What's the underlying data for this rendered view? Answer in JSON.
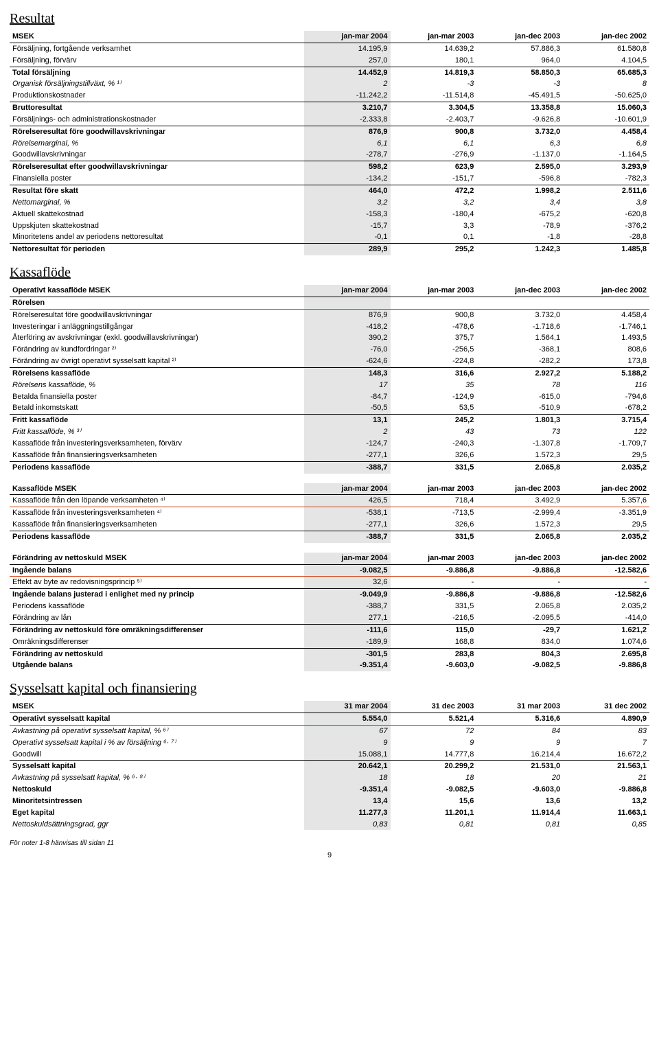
{
  "sections": {
    "resultat": "Resultat",
    "kassa": "Kassaflöde",
    "syss": "Sysselsatt kapital och finansiering"
  },
  "footer": "För noter 1-8 hänvisas till sidan 11",
  "page_number": "9",
  "colors": {
    "shaded_bg": "#e5e5e5",
    "redline": "#cc3300",
    "text": "#000000",
    "background": "#ffffff"
  },
  "tables": {
    "resultat": {
      "headers": [
        "MSEK",
        "jan-mar 2004",
        "jan-mar 2003",
        "jan-dec 2003",
        "jan-dec 2002"
      ],
      "shaded_col": 1,
      "rows": [
        {
          "l": "Försäljning, fortgående verksamhet",
          "v": [
            "14.195,9",
            "14.639,2",
            "57.886,3",
            "61.580,8"
          ]
        },
        {
          "l": "Försäljning, förvärv",
          "v": [
            "257,0",
            "180,1",
            "964,0",
            "4.104,5"
          ],
          "uline": true
        },
        {
          "l": "Total försäljning",
          "v": [
            "14.452,9",
            "14.819,3",
            "58.850,3",
            "65.685,3"
          ],
          "bold": true
        },
        {
          "l": "Organisk försäljningstillväxt, % ¹⁾",
          "v": [
            "2",
            "-3",
            "-3",
            "8"
          ],
          "italic": true
        },
        {
          "l": "Produktionskostnader",
          "v": [
            "-11.242,2",
            "-11.514,8",
            "-45.491,5",
            "-50.625,0"
          ],
          "uline": true
        },
        {
          "l": "Bruttoresultat",
          "v": [
            "3.210,7",
            "3.304,5",
            "13.358,8",
            "15.060,3"
          ],
          "bold": true
        },
        {
          "l": "Försäljnings- och administrationskostnader",
          "v": [
            "-2.333,8",
            "-2.403,7",
            "-9.626,8",
            "-10.601,9"
          ],
          "uline": true
        },
        {
          "l": "Rörelseresultat före goodwillavskrivningar",
          "v": [
            "876,9",
            "900,8",
            "3.732,0",
            "4.458,4"
          ],
          "bold": true
        },
        {
          "l": "Rörelsemarginal, %",
          "v": [
            "6,1",
            "6,1",
            "6,3",
            "6,8"
          ],
          "italic": true
        },
        {
          "l": "Goodwillavskrivningar",
          "v": [
            "-278,7",
            "-276,9",
            "-1.137,0",
            "-1.164,5"
          ],
          "uline": true
        },
        {
          "l": "Rörelseresultat efter goodwillavskrivningar",
          "v": [
            "598,2",
            "623,9",
            "2.595,0",
            "3.293,9"
          ],
          "bold": true
        },
        {
          "l": "Finansiella poster",
          "v": [
            "-134,2",
            "-151,7",
            "-596,8",
            "-782,3"
          ],
          "uline": true
        },
        {
          "l": "Resultat före skatt",
          "v": [
            "464,0",
            "472,2",
            "1.998,2",
            "2.511,6"
          ],
          "bold": true
        },
        {
          "l": "Nettomarginal, %",
          "v": [
            "3,2",
            "3,2",
            "3,4",
            "3,8"
          ],
          "italic": true
        },
        {
          "l": "Aktuell skattekostnad",
          "v": [
            "-158,3",
            "-180,4",
            "-675,2",
            "-620,8"
          ]
        },
        {
          "l": "Uppskjuten skattekostnad",
          "v": [
            "-15,7",
            "3,3",
            "-78,9",
            "-376,2"
          ]
        },
        {
          "l": "Minoritetens andel av periodens nettoresultat",
          "v": [
            "-0,1",
            "0,1",
            "-1,8",
            "-28,8"
          ],
          "uline": true
        },
        {
          "l": "Nettoresultat för perioden",
          "v": [
            "289,9",
            "295,2",
            "1.242,3",
            "1.485,8"
          ],
          "bold": true
        }
      ]
    },
    "kassa_op": {
      "headers": [
        "Operativt kassaflöde MSEK",
        "jan-mar 2004",
        "jan-mar 2003",
        "jan-dec 2003",
        "jan-dec 2002"
      ],
      "shaded_col": 1,
      "rows": [
        {
          "l": "Rörelsen",
          "v": [
            "",
            "",
            "",
            ""
          ],
          "redline": true,
          "bold": true
        },
        {
          "l": "Rörelseresultat före goodwillavskrivningar",
          "v": [
            "876,9",
            "900,8",
            "3.732,0",
            "4.458,4"
          ]
        },
        {
          "l": "Investeringar i anläggningstillgångar",
          "v": [
            "-418,2",
            "-478,6",
            "-1.718,6",
            "-1.746,1"
          ]
        },
        {
          "l": "Återföring av avskrivningar (exkl. goodwillavskrivningar)",
          "v": [
            "390,2",
            "375,7",
            "1.564,1",
            "1.493,5"
          ]
        },
        {
          "l": "Förändring av kundfordringar ²⁾",
          "v": [
            "-76,0",
            "-256,5",
            "-368,1",
            "808,6"
          ]
        },
        {
          "l": "Förändring av övrigt operativt sysselsatt kapital ²⁾",
          "v": [
            "-624,6",
            "-224,8",
            "-282,2",
            "173,8"
          ],
          "uline": true
        },
        {
          "l": "Rörelsens kassaflöde",
          "v": [
            "148,3",
            "316,6",
            "2.927,2",
            "5.188,2"
          ],
          "bold": true
        },
        {
          "l": "Rörelsens kassaflöde, %",
          "v": [
            "17",
            "35",
            "78",
            "116"
          ],
          "italic": true
        },
        {
          "l": "Betalda finansiella poster",
          "v": [
            "-84,7",
            "-124,9",
            "-615,0",
            "-794,6"
          ]
        },
        {
          "l": "Betald inkomstskatt",
          "v": [
            "-50,5",
            "53,5",
            "-510,9",
            "-678,2"
          ],
          "uline": true
        },
        {
          "l": "Fritt kassaflöde",
          "v": [
            "13,1",
            "245,2",
            "1.801,3",
            "3.715,4"
          ],
          "bold": true
        },
        {
          "l": "Fritt kassaflöde, % ³⁾",
          "v": [
            "2",
            "43",
            "73",
            "122"
          ],
          "italic": true
        },
        {
          "l": "Kassaflöde från investeringsverksamheten, förvärv",
          "v": [
            "-124,7",
            "-240,3",
            "-1.307,8",
            "-1.709,7"
          ]
        },
        {
          "l": "Kassaflöde från finansieringsverksamheten",
          "v": [
            "-277,1",
            "326,6",
            "1.572,3",
            "29,5"
          ],
          "uline": true
        },
        {
          "l": "Periodens kassaflöde",
          "v": [
            "-388,7",
            "331,5",
            "2.065,8",
            "2.035,2"
          ],
          "bold": true
        }
      ]
    },
    "kassa_msek": {
      "headers": [
        "Kassaflöde MSEK",
        "jan-mar 2004",
        "jan-mar 2003",
        "jan-dec 2003",
        "jan-dec 2002"
      ],
      "shaded_col": 1,
      "rows": [
        {
          "l": "Kassaflöde från den löpande verksamheten ⁴⁾",
          "v": [
            "426,5",
            "718,4",
            "3.492,9",
            "5.357,6"
          ],
          "redline": true
        },
        {
          "l": "Kassaflöde från investeringsverksamheten ⁴⁾",
          "v": [
            "-538,1",
            "-713,5",
            "-2.999,4",
            "-3.351,9"
          ]
        },
        {
          "l": "Kassaflöde från finansieringsverksamheten",
          "v": [
            "-277,1",
            "326,6",
            "1.572,3",
            "29,5"
          ],
          "uline": true
        },
        {
          "l": "Periodens kassaflöde",
          "v": [
            "-388,7",
            "331,5",
            "2.065,8",
            "2.035,2"
          ],
          "bold": true
        }
      ]
    },
    "netto": {
      "headers": [
        "Förändring av nettoskuld MSEK",
        "jan-mar 2004",
        "jan-mar 2003",
        "jan-dec 2003",
        "jan-dec 2002"
      ],
      "shaded_col": 1,
      "rows": [
        {
          "l": "Ingående balans",
          "v": [
            "-9.082,5",
            "-9.886,8",
            "-9.886,8",
            "-12.582,6"
          ],
          "bold": true,
          "redline": true
        },
        {
          "l": "Effekt av byte av redovisningsprincip ⁵⁾",
          "v": [
            "32,6",
            "-",
            "-",
            "-"
          ],
          "uline": true
        },
        {
          "l": "Ingående balans justerad i enlighet med ny princip",
          "v": [
            "-9.049,9",
            "-9.886,8",
            "-9.886,8",
            "-12.582,6"
          ],
          "bold": true
        },
        {
          "l": "Periodens kassaflöde",
          "v": [
            "-388,7",
            "331,5",
            "2.065,8",
            "2.035,2"
          ]
        },
        {
          "l": "Förändring av lån",
          "v": [
            "277,1",
            "-216,5",
            "-2.095,5",
            "-414,0"
          ],
          "uline": true
        },
        {
          "l": "Förändring av nettoskuld före omräkningsdifferenser",
          "v": [
            "-111,6",
            "115,0",
            "-29,7",
            "1.621,2"
          ],
          "bold": true
        },
        {
          "l": "Omräkningsdifferenser",
          "v": [
            "-189,9",
            "168,8",
            "834,0",
            "1.074,6"
          ],
          "uline": true
        },
        {
          "l": "Förändring av nettoskuld",
          "v": [
            "-301,5",
            "283,8",
            "804,3",
            "2.695,8"
          ],
          "bold": true
        },
        {
          "l": "Utgående balans",
          "v": [
            "-9.351,4",
            "-9.603,0",
            "-9.082,5",
            "-9.886,8"
          ],
          "bold": true
        }
      ]
    },
    "syss": {
      "headers": [
        "MSEK",
        "31 mar 2004",
        "31 dec 2003",
        "31 mar 2003",
        "31 dec 2002"
      ],
      "shaded_col": 1,
      "rows": [
        {
          "l": "Operativt sysselsatt kapital",
          "v": [
            "5.554,0",
            "5.521,4",
            "5.316,6",
            "4.890,9"
          ],
          "bold": true,
          "redline": true
        },
        {
          "l": "Avkastning på operativt sysselsatt kapital, % ⁶⁾",
          "v": [
            "67",
            "72",
            "84",
            "83"
          ],
          "italic": true
        },
        {
          "l": "Operativt sysselsatt kapital i % av försäljning ⁶· ⁷⁾",
          "v": [
            "9",
            "9",
            "9",
            "7"
          ],
          "italic": true
        },
        {
          "l": "Goodwill",
          "v": [
            "15.088,1",
            "14.777,8",
            "16.214,4",
            "16.672,2"
          ],
          "uline": true
        },
        {
          "l": "Sysselsatt kapital",
          "v": [
            "20.642,1",
            "20.299,2",
            "21.531,0",
            "21.563,1"
          ],
          "bold": true
        },
        {
          "l": "Avkastning på sysselsatt kapital, % ⁶· ⁸⁾",
          "v": [
            "18",
            "18",
            "20",
            "21"
          ],
          "italic": true
        },
        {
          "l": "Nettoskuld",
          "v": [
            "-9.351,4",
            "-9.082,5",
            "-9.603,0",
            "-9.886,8"
          ],
          "bold": true
        },
        {
          "l": "Minoritetsintressen",
          "v": [
            "13,4",
            "15,6",
            "13,6",
            "13,2"
          ],
          "bold": true
        },
        {
          "l": "Eget kapital",
          "v": [
            "11.277,3",
            "11.201,1",
            "11.914,4",
            "11.663,1"
          ],
          "bold": true
        },
        {
          "l": "Nettoskuldsättningsgrad, ggr",
          "v": [
            "0,83",
            "0,81",
            "0,81",
            "0,85"
          ],
          "italic": true
        }
      ]
    }
  }
}
